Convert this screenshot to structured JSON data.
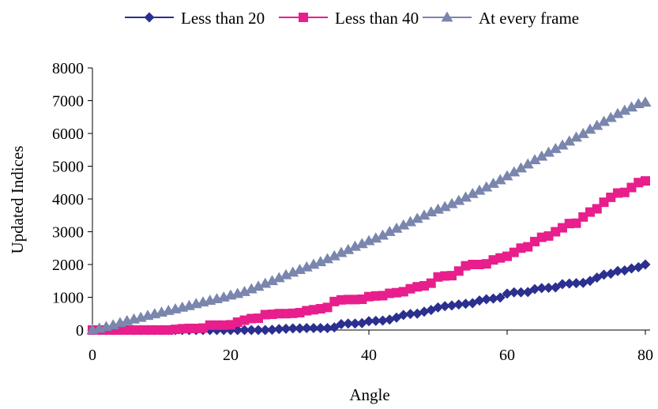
{
  "chart_data": {
    "type": "line",
    "title": "",
    "xlabel": "Angle",
    "ylabel": "Updated Indices",
    "xlim": [
      0,
      80
    ],
    "ylim": [
      0,
      8000
    ],
    "xticks": [
      "0",
      "20",
      "40",
      "60",
      "80"
    ],
    "yticks": [
      "0",
      "1000",
      "2000",
      "3000",
      "4000",
      "5000",
      "6000",
      "7000",
      "8000"
    ],
    "grid": false,
    "legend": "top",
    "series": [
      {
        "name": "Less than 20",
        "color": "#2b2f8f",
        "marker": "diamond",
        "x": [
          0,
          1,
          2,
          3,
          4,
          5,
          6,
          7,
          8,
          9,
          10,
          11,
          12,
          13,
          14,
          15,
          16,
          17,
          18,
          19,
          20,
          21,
          22,
          23,
          24,
          25,
          26,
          27,
          28,
          29,
          30,
          31,
          32,
          33,
          34,
          35,
          36,
          37,
          38,
          39,
          40,
          41,
          42,
          43,
          44,
          45,
          46,
          47,
          48,
          49,
          50,
          51,
          52,
          53,
          54,
          55,
          56,
          57,
          58,
          59,
          60,
          61,
          62,
          63,
          64,
          65,
          66,
          67,
          68,
          69,
          70,
          71,
          72,
          73,
          74,
          75,
          76,
          77,
          78,
          79,
          80
        ],
        "values": [
          0,
          0,
          0,
          0,
          0,
          0,
          0,
          0,
          0,
          0,
          0,
          0,
          0,
          0,
          0,
          0,
          0,
          0,
          0,
          0,
          0,
          0,
          0,
          0,
          0,
          0,
          10,
          30,
          40,
          50,
          50,
          60,
          60,
          60,
          60,
          80,
          180,
          200,
          200,
          210,
          270,
          280,
          290,
          320,
          380,
          460,
          490,
          500,
          560,
          610,
          690,
          730,
          750,
          780,
          800,
          820,
          900,
          940,
          960,
          990,
          1110,
          1150,
          1150,
          1160,
          1250,
          1280,
          1290,
          1300,
          1400,
          1420,
          1430,
          1440,
          1500,
          1600,
          1690,
          1720,
          1800,
          1820,
          1880,
          1920,
          2000
        ]
      },
      {
        "name": "Less than 40",
        "color": "#e81e8c",
        "marker": "square",
        "x": [
          0,
          1,
          2,
          3,
          4,
          5,
          6,
          7,
          8,
          9,
          10,
          11,
          12,
          13,
          14,
          15,
          16,
          17,
          18,
          19,
          20,
          21,
          22,
          23,
          24,
          25,
          26,
          27,
          28,
          29,
          30,
          31,
          32,
          33,
          34,
          35,
          36,
          37,
          38,
          39,
          40,
          41,
          42,
          43,
          44,
          45,
          46,
          47,
          48,
          49,
          50,
          51,
          52,
          53,
          54,
          55,
          56,
          57,
          58,
          59,
          60,
          61,
          62,
          63,
          64,
          65,
          66,
          67,
          68,
          69,
          70,
          71,
          72,
          73,
          74,
          75,
          76,
          77,
          78,
          79,
          80
        ],
        "values": [
          0,
          0,
          0,
          0,
          0,
          0,
          0,
          0,
          0,
          0,
          0,
          0,
          20,
          40,
          50,
          50,
          60,
          150,
          150,
          150,
          160,
          240,
          300,
          350,
          360,
          470,
          480,
          500,
          500,
          510,
          530,
          590,
          620,
          650,
          690,
          870,
          920,
          930,
          930,
          940,
          1020,
          1040,
          1050,
          1120,
          1140,
          1170,
          1260,
          1320,
          1350,
          1430,
          1620,
          1650,
          1660,
          1800,
          1960,
          2000,
          2000,
          2020,
          2140,
          2200,
          2250,
          2370,
          2500,
          2540,
          2700,
          2830,
          2870,
          3000,
          3120,
          3250,
          3260,
          3450,
          3600,
          3700,
          3900,
          4050,
          4180,
          4200,
          4350,
          4500,
          4550
        ]
      },
      {
        "name": "At every frame",
        "color": "#7a86ad",
        "marker": "triangle",
        "x": [
          0,
          1,
          2,
          3,
          4,
          5,
          6,
          7,
          8,
          9,
          10,
          11,
          12,
          13,
          14,
          15,
          16,
          17,
          18,
          19,
          20,
          21,
          22,
          23,
          24,
          25,
          26,
          27,
          28,
          29,
          30,
          31,
          32,
          33,
          34,
          35,
          36,
          37,
          38,
          39,
          40,
          41,
          42,
          43,
          44,
          45,
          46,
          47,
          48,
          49,
          50,
          51,
          52,
          53,
          54,
          55,
          56,
          57,
          58,
          59,
          60,
          61,
          62,
          63,
          64,
          65,
          66,
          67,
          68,
          69,
          70,
          71,
          72,
          73,
          74,
          75,
          76,
          77,
          78,
          79,
          80
        ],
        "values": [
          0,
          50,
          100,
          150,
          220,
          280,
          330,
          380,
          440,
          490,
          540,
          590,
          640,
          690,
          740,
          800,
          850,
          900,
          950,
          1000,
          1060,
          1110,
          1170,
          1250,
          1330,
          1420,
          1500,
          1590,
          1680,
          1760,
          1840,
          1920,
          2000,
          2080,
          2170,
          2260,
          2360,
          2450,
          2550,
          2630,
          2720,
          2800,
          2890,
          3000,
          3100,
          3200,
          3300,
          3400,
          3500,
          3600,
          3680,
          3760,
          3850,
          3950,
          4050,
          4160,
          4260,
          4360,
          4470,
          4580,
          4700,
          4820,
          4940,
          5060,
          5190,
          5300,
          5420,
          5530,
          5640,
          5760,
          5880,
          5990,
          6120,
          6240,
          6360,
          6480,
          6600,
          6700,
          6800,
          6900,
          6950
        ]
      }
    ]
  }
}
